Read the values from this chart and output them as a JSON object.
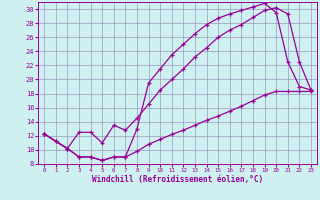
{
  "xlabel": "Windchill (Refroidissement éolien,°C)",
  "bg_color": "#cef0f0",
  "grid_color": "#9999bb",
  "line_color": "#990099",
  "xlim": [
    -0.5,
    23.5
  ],
  "ylim": [
    8,
    31
  ],
  "yticks": [
    8,
    10,
    12,
    14,
    16,
    18,
    20,
    22,
    24,
    26,
    28,
    30
  ],
  "xticks": [
    0,
    1,
    2,
    3,
    4,
    5,
    6,
    7,
    8,
    9,
    10,
    11,
    12,
    13,
    14,
    15,
    16,
    17,
    18,
    19,
    20,
    21,
    22,
    23
  ],
  "line1_x": [
    0,
    1,
    2,
    3,
    4,
    5,
    6,
    7,
    8,
    9,
    10,
    11,
    12,
    13,
    14,
    15,
    16,
    17,
    18,
    19,
    20,
    21,
    22,
    23
  ],
  "line1_y": [
    12.3,
    11.2,
    10.2,
    9.0,
    9.0,
    8.5,
    9.0,
    9.0,
    13.0,
    19.5,
    21.5,
    23.5,
    25.0,
    26.5,
    27.8,
    28.7,
    29.3,
    29.8,
    30.3,
    30.8,
    29.5,
    22.5,
    19.0,
    18.5
  ],
  "line2_x": [
    0,
    2,
    3,
    4,
    5,
    6,
    7,
    8,
    9,
    10,
    11,
    12,
    13,
    14,
    15,
    16,
    17,
    18,
    19,
    20,
    21,
    22,
    23
  ],
  "line2_y": [
    12.3,
    10.2,
    12.5,
    12.5,
    11.0,
    13.5,
    12.8,
    14.5,
    16.5,
    18.5,
    20.0,
    21.5,
    23.2,
    24.5,
    26.0,
    27.0,
    27.8,
    28.8,
    29.8,
    30.2,
    29.3,
    22.5,
    18.5
  ],
  "line3_x": [
    0,
    1,
    2,
    3,
    4,
    5,
    6,
    7,
    8,
    9,
    10,
    11,
    12,
    13,
    14,
    15,
    16,
    17,
    18,
    19,
    20,
    21,
    22,
    23
  ],
  "line3_y": [
    12.3,
    11.2,
    10.2,
    9.0,
    9.0,
    8.5,
    9.0,
    9.0,
    9.8,
    10.8,
    11.5,
    12.2,
    12.8,
    13.5,
    14.2,
    14.8,
    15.5,
    16.2,
    17.0,
    17.8,
    18.3,
    18.3,
    18.3,
    18.3
  ]
}
